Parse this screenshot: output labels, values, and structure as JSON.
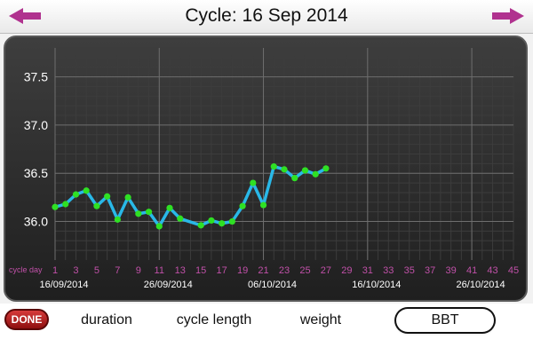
{
  "header": {
    "title": "Cycle: 16 Sep 2014",
    "prev_icon": "left-arrow-icon",
    "next_icon": "right-arrow-icon",
    "arrow_color": "#b0328f"
  },
  "chart_data": {
    "type": "line",
    "ylim": [
      35.6,
      37.8
    ],
    "y_ticks": [
      "36.0",
      "36.5",
      "37.0",
      "37.5"
    ],
    "xlim": [
      1,
      45
    ],
    "x_ticks": [
      "1",
      "3",
      "5",
      "7",
      "9",
      "11",
      "13",
      "15",
      "17",
      "19",
      "21",
      "23",
      "25",
      "27",
      "29",
      "31",
      "33",
      "35",
      "37",
      "39",
      "41",
      "43",
      "45"
    ],
    "x_axis_label": "cycle day",
    "date_labels": [
      {
        "day": 1,
        "text": "16/09/2014"
      },
      {
        "day": 11,
        "text": "26/09/2014"
      },
      {
        "day": 21,
        "text": "06/10/2014"
      },
      {
        "day": 31,
        "text": "16/10/2014"
      },
      {
        "day": 41,
        "text": "26/10/2014"
      }
    ],
    "series": [
      {
        "x": [
          1,
          2,
          3,
          4,
          5,
          6,
          7,
          8,
          9,
          10,
          11,
          12,
          13,
          15,
          16,
          17,
          18,
          19,
          20,
          21,
          22,
          23,
          24,
          25,
          26,
          27
        ],
        "y": [
          36.15,
          36.18,
          36.28,
          36.32,
          36.16,
          36.26,
          36.02,
          36.25,
          36.08,
          36.1,
          35.95,
          36.14,
          36.03,
          35.96,
          36.01,
          35.98,
          36.0,
          36.16,
          36.4,
          36.17,
          36.57,
          36.54,
          36.45,
          36.53,
          36.49,
          36.55
        ],
        "line_color": "#29b8e8",
        "point_color": "#2fe024"
      }
    ],
    "grid": true,
    "tick_label_color_x": "#c050a8",
    "tick_label_color_y": "#ffffff"
  },
  "bottom_bar": {
    "done_label": "DONE",
    "tabs": [
      {
        "label": "duration",
        "selected": false
      },
      {
        "label": "cycle length",
        "selected": false
      },
      {
        "label": "weight",
        "selected": false
      },
      {
        "label": "BBT",
        "selected": true
      }
    ]
  }
}
